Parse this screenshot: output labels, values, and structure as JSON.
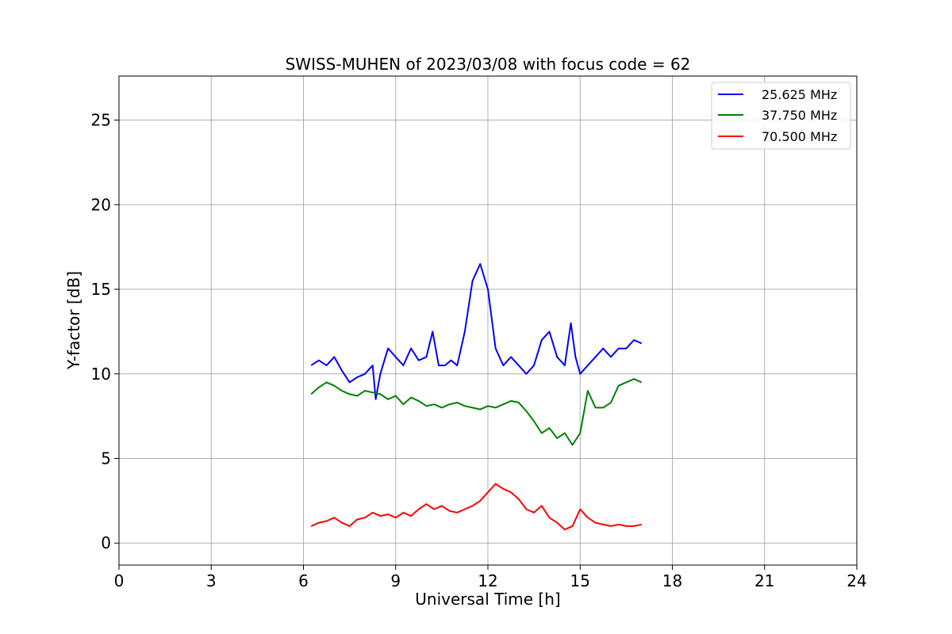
{
  "chart_data": {
    "type": "line",
    "title": "SWISS-MUHEN of 2023/03/08 with focus code = 62",
    "xlabel": "Universal Time [h]",
    "ylabel": "Y-factor [dB]",
    "xlim": [
      0,
      24
    ],
    "ylim": [
      -1.3,
      27.6
    ],
    "xticks": [
      0,
      3,
      6,
      9,
      12,
      15,
      18,
      21,
      24
    ],
    "yticks": [
      0,
      5,
      10,
      15,
      20,
      25
    ],
    "grid": true,
    "legend_position": "top-right",
    "series": [
      {
        "name": "25.625 MHz",
        "color": "#0000ff",
        "x": [
          6.25,
          6.5,
          6.75,
          7.0,
          7.25,
          7.5,
          7.75,
          8.0,
          8.25,
          8.35,
          8.5,
          8.75,
          9.0,
          9.25,
          9.5,
          9.75,
          10.0,
          10.2,
          10.4,
          10.6,
          10.8,
          11.0,
          11.25,
          11.5,
          11.75,
          12.0,
          12.25,
          12.5,
          12.75,
          13.0,
          13.25,
          13.5,
          13.75,
          14.0,
          14.25,
          14.5,
          14.7,
          14.85,
          15.0,
          15.25,
          15.5,
          15.75,
          16.0,
          16.25,
          16.5,
          16.75,
          17.0
        ],
        "y": [
          10.5,
          10.8,
          10.5,
          11.0,
          10.2,
          9.5,
          9.8,
          10.0,
          10.5,
          8.5,
          10.0,
          11.5,
          11.0,
          10.5,
          11.5,
          10.8,
          11.0,
          12.5,
          10.5,
          10.5,
          10.8,
          10.5,
          12.5,
          15.5,
          16.5,
          15.0,
          11.5,
          10.5,
          11.0,
          10.5,
          10.0,
          10.5,
          12.0,
          12.5,
          11.0,
          10.5,
          13.0,
          11.0,
          10.0,
          10.5,
          11.0,
          11.5,
          11.0,
          11.5,
          11.5,
          12.0,
          11.8
        ]
      },
      {
        "name": "37.750 MHz",
        "color": "#008000",
        "x": [
          6.25,
          6.5,
          6.75,
          7.0,
          7.25,
          7.5,
          7.75,
          8.0,
          8.25,
          8.5,
          8.75,
          9.0,
          9.25,
          9.5,
          9.75,
          10.0,
          10.25,
          10.5,
          10.75,
          11.0,
          11.25,
          11.5,
          11.75,
          12.0,
          12.25,
          12.5,
          12.75,
          13.0,
          13.25,
          13.5,
          13.75,
          14.0,
          14.25,
          14.5,
          14.75,
          15.0,
          15.25,
          15.5,
          15.75,
          16.0,
          16.25,
          16.5,
          16.75,
          17.0
        ],
        "y": [
          8.8,
          9.2,
          9.5,
          9.3,
          9.0,
          8.8,
          8.7,
          9.0,
          8.9,
          8.8,
          8.5,
          8.7,
          8.2,
          8.6,
          8.4,
          8.1,
          8.2,
          8.0,
          8.2,
          8.3,
          8.1,
          8.0,
          7.9,
          8.1,
          8.0,
          8.2,
          8.4,
          8.3,
          7.8,
          7.2,
          6.5,
          6.8,
          6.2,
          6.5,
          5.8,
          6.5,
          9.0,
          8.0,
          8.0,
          8.3,
          9.3,
          9.5,
          9.7,
          9.5
        ]
      },
      {
        "name": "70.500 MHz",
        "color": "#ff0000",
        "x": [
          6.25,
          6.5,
          6.75,
          7.0,
          7.25,
          7.5,
          7.75,
          8.0,
          8.25,
          8.5,
          8.75,
          9.0,
          9.25,
          9.5,
          9.75,
          10.0,
          10.25,
          10.5,
          10.75,
          11.0,
          11.25,
          11.5,
          11.75,
          12.0,
          12.25,
          12.5,
          12.75,
          13.0,
          13.25,
          13.5,
          13.75,
          14.0,
          14.25,
          14.5,
          14.75,
          15.0,
          15.25,
          15.5,
          15.75,
          16.0,
          16.25,
          16.5,
          16.75,
          17.0
        ],
        "y": [
          1.0,
          1.2,
          1.3,
          1.5,
          1.2,
          1.0,
          1.4,
          1.5,
          1.8,
          1.6,
          1.7,
          1.5,
          1.8,
          1.6,
          2.0,
          2.3,
          2.0,
          2.2,
          1.9,
          1.8,
          2.0,
          2.2,
          2.5,
          3.0,
          3.5,
          3.2,
          3.0,
          2.6,
          2.0,
          1.8,
          2.2,
          1.5,
          1.2,
          0.8,
          1.0,
          2.0,
          1.5,
          1.2,
          1.1,
          1.0,
          1.1,
          1.0,
          1.0,
          1.1
        ]
      }
    ]
  }
}
